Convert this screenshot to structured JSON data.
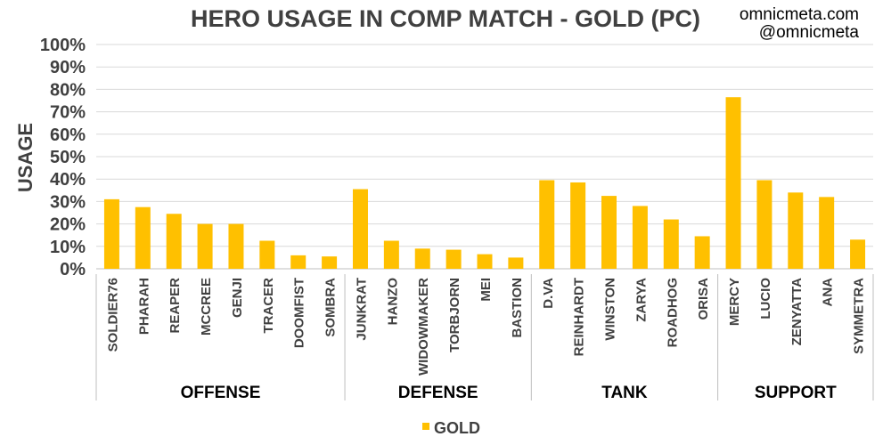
{
  "credits": {
    "line1": "omnicmeta.com",
    "line2": "@omnicmeta"
  },
  "chart_data": {
    "type": "bar",
    "title": "HERO USAGE IN COMP MATCH - GOLD (PC)",
    "ylabel": "USAGE",
    "ylim": [
      0,
      100
    ],
    "y_ticks": [
      "0%",
      "10%",
      "20%",
      "30%",
      "40%",
      "50%",
      "60%",
      "70%",
      "80%",
      "90%",
      "100%"
    ],
    "grid": true,
    "legend_position": "bottom-center",
    "bar_color": "#FFC000",
    "categories": [
      "SOLDIER76",
      "PHARAH",
      "REAPER",
      "MCCREE",
      "GENJI",
      "TRACER",
      "DOOMFIST",
      "SOMBRA",
      "JUNKRAT",
      "HANZO",
      "WIDOWMAKER",
      "TORBJORN",
      "MEI",
      "BASTION",
      "D.VA",
      "REINHARDT",
      "WINSTON",
      "ZARYA",
      "ROADHOG",
      "ORISA",
      "MERCY",
      "LUCIO",
      "ZENYATTA",
      "ANA",
      "SYMMETRA"
    ],
    "groups": [
      {
        "name": "OFFENSE",
        "count": 8
      },
      {
        "name": "DEFENSE",
        "count": 6
      },
      {
        "name": "TANK",
        "count": 6
      },
      {
        "name": "SUPPORT",
        "count": 5
      }
    ],
    "series": [
      {
        "name": "GOLD",
        "values": [
          31,
          27.5,
          24.5,
          20,
          20,
          12.5,
          6,
          5.5,
          35.5,
          12.5,
          9,
          8.5,
          6.5,
          5,
          39.5,
          38.5,
          32.5,
          28,
          22,
          14.5,
          76.5,
          39.5,
          34,
          32,
          13
        ]
      }
    ]
  }
}
